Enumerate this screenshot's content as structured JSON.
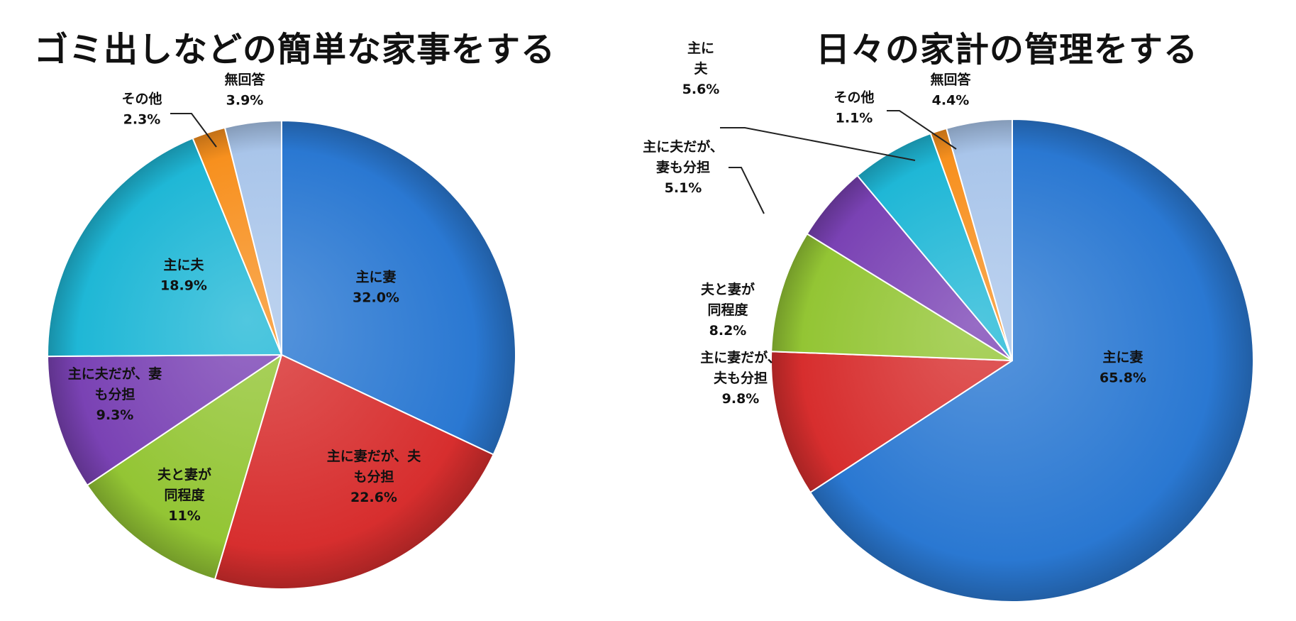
{
  "chart_data": [
    {
      "type": "pie",
      "title": "ゴミ出しなどの簡単な家事をする",
      "slices": [
        {
          "label": [
            "主に妻",
            "32.0%"
          ],
          "value": 32.0,
          "color": "#2a78d2"
        },
        {
          "label": [
            "主に妻だが、夫",
            "も分担",
            "22.6%"
          ],
          "value": 22.6,
          "color": "#d72e2e"
        },
        {
          "label": [
            "夫と妻が",
            "同程度",
            "11%"
          ],
          "value": 11.0,
          "color": "#93c534"
        },
        {
          "label": [
            "主に夫だが、妻",
            "も分担",
            "9.3%"
          ],
          "value": 9.3,
          "color": "#7a42b4"
        },
        {
          "label": [
            "主に夫",
            "18.9%"
          ],
          "value": 18.9,
          "color": "#1fb7d6"
        },
        {
          "label": [
            "その他",
            "2.3%"
          ],
          "value": 2.3,
          "color": "#f7901e"
        },
        {
          "label": [
            "無回答",
            "3.9%"
          ],
          "value": 3.9,
          "color": "#a9c5ea"
        }
      ]
    },
    {
      "type": "pie",
      "title": "日々の家計の管理をする",
      "slices": [
        {
          "label": [
            "主に妻",
            "65.8%"
          ],
          "value": 65.8,
          "color": "#2a78d2"
        },
        {
          "label": [
            "主に妻だが、",
            "夫も分担",
            "9.8%"
          ],
          "value": 9.8,
          "color": "#d72e2e"
        },
        {
          "label": [
            "夫と妻が",
            "同程度",
            "8.2%"
          ],
          "value": 8.2,
          "color": "#93c534"
        },
        {
          "label": [
            "主に夫だが、",
            "妻も分担",
            "5.1%"
          ],
          "value": 5.1,
          "color": "#7a42b4"
        },
        {
          "label": [
            "主に",
            "夫",
            "5.6%"
          ],
          "value": 5.6,
          "color": "#1fb7d6"
        },
        {
          "label": [
            "その他",
            "1.1%"
          ],
          "value": 1.1,
          "color": "#f7901e"
        },
        {
          "label": [
            "無回答",
            "4.4%"
          ],
          "value": 4.4,
          "color": "#a9c5ea"
        }
      ]
    }
  ]
}
